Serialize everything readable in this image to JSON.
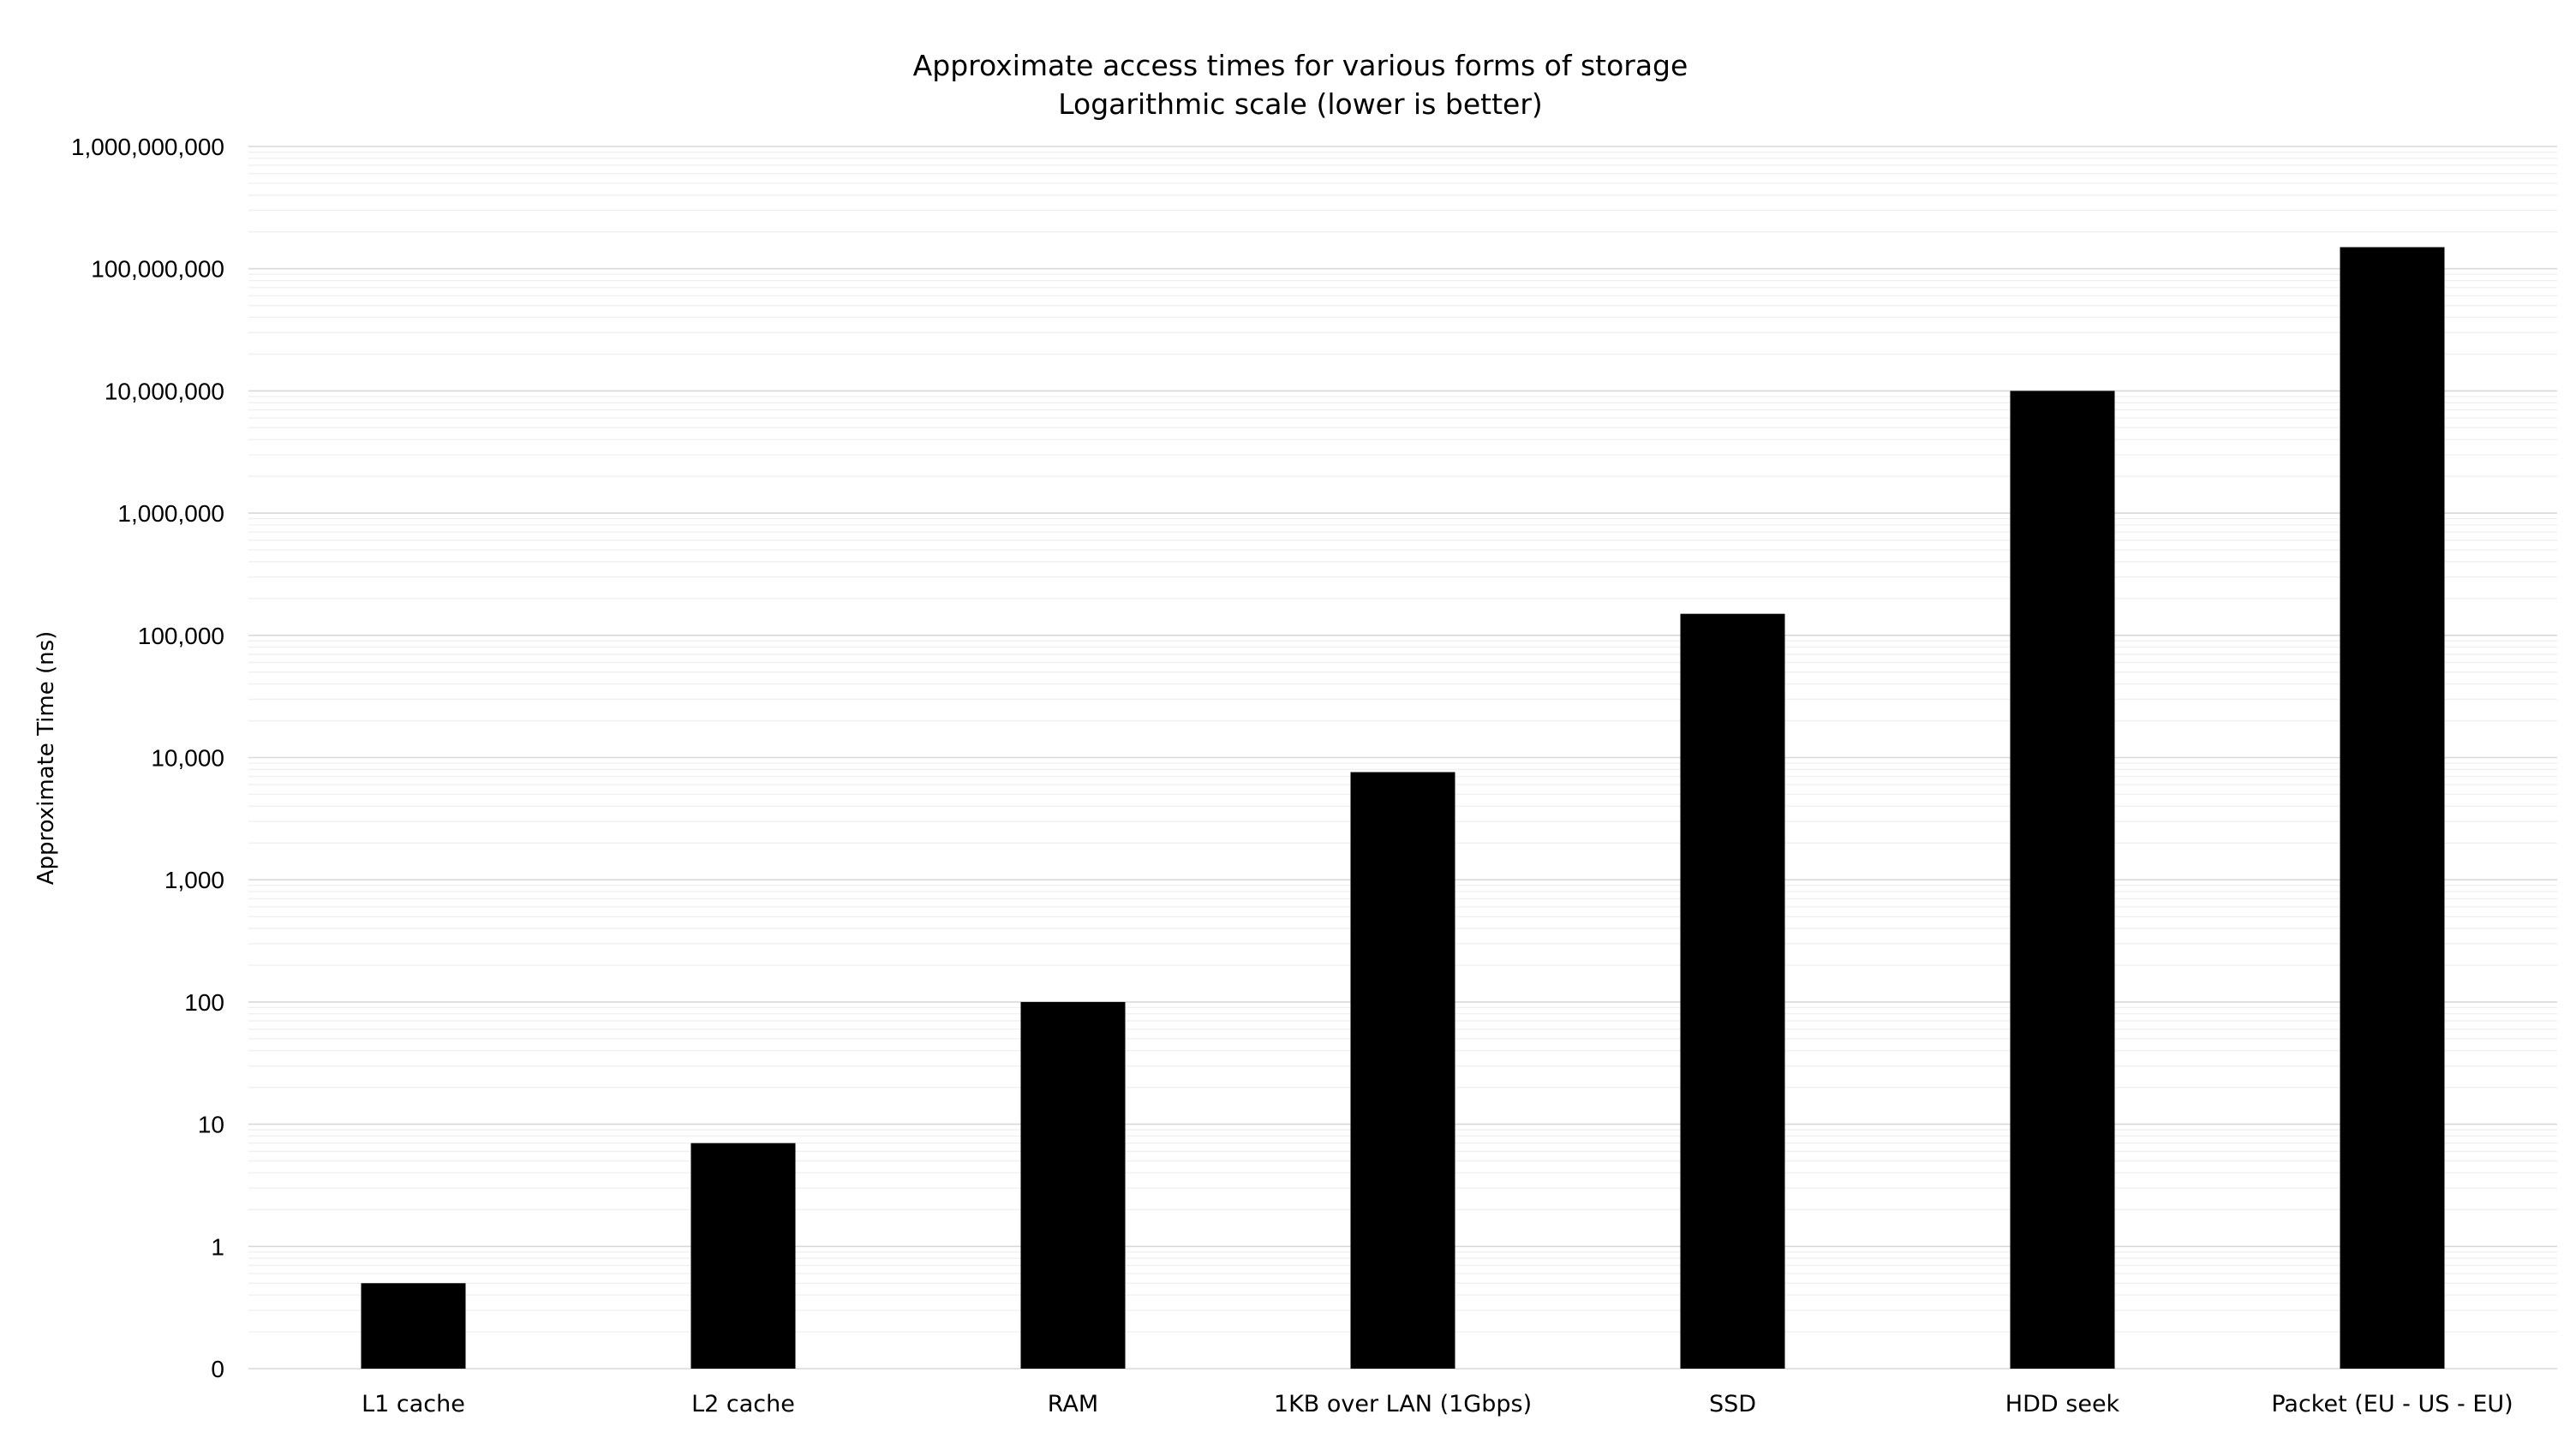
{
  "chart_data": {
    "type": "bar",
    "title": "Approximate access times for various forms of storage",
    "subtitle": "Logarithmic scale (lower is better)",
    "xlabel": "",
    "ylabel": "Approximate Time (ns)",
    "y_scale": "log",
    "ylim": [
      0.1,
      1000000000
    ],
    "grid": true,
    "legend": "none",
    "bar_color": "#000000",
    "gridline_color": "#d9d9d9",
    "y_ticks": [
      0.1,
      1,
      10,
      100,
      1000,
      10000,
      100000,
      1000000,
      10000000,
      100000000,
      1000000000
    ],
    "y_tick_labels": [
      "0",
      "1",
      "10",
      "100",
      "1,000",
      "10,000",
      "100,000",
      "1,000,000",
      "10,000,000",
      "100,000,000",
      "1,000,000,000"
    ],
    "categories": [
      "L1 cache",
      "L2 cache",
      "RAM",
      "1KB over LAN (1Gbps)",
      "SSD",
      "HDD seek",
      "Packet (EU - US - EU)"
    ],
    "values": [
      0.5,
      7,
      100,
      7600,
      150000,
      10000000,
      150000000
    ]
  }
}
